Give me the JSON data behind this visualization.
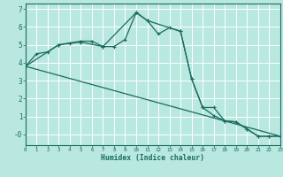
{
  "xlabel": "Humidex (Indice chaleur)",
  "bg_color": "#b8e8e0",
  "grid_color": "#ffffff",
  "line_color": "#1a6b60",
  "xlim": [
    0,
    23
  ],
  "ylim": [
    -0.6,
    7.3
  ],
  "x_ticks": [
    0,
    1,
    2,
    3,
    4,
    5,
    6,
    7,
    8,
    9,
    10,
    11,
    12,
    13,
    14,
    15,
    16,
    17,
    18,
    19,
    20,
    21,
    22,
    23
  ],
  "y_ticks": [
    0,
    1,
    2,
    3,
    4,
    5,
    6,
    7
  ],
  "y_tick_labels": [
    "-0",
    "1",
    "2",
    "3",
    "4",
    "5",
    "6",
    "7"
  ],
  "series1_x": [
    0,
    1,
    2,
    3,
    4,
    5,
    6,
    7,
    8,
    9,
    10,
    11,
    12,
    13,
    14,
    15,
    16,
    17,
    18,
    19,
    20,
    21,
    22,
    23
  ],
  "series1_y": [
    3.8,
    4.5,
    4.6,
    5.0,
    5.1,
    5.2,
    5.2,
    4.9,
    4.9,
    5.3,
    6.8,
    6.35,
    5.6,
    5.95,
    5.75,
    3.1,
    1.5,
    1.5,
    0.75,
    0.7,
    0.3,
    -0.1,
    -0.1,
    -0.1
  ],
  "series2_x": [
    0,
    3,
    5,
    7,
    10,
    11,
    14,
    15,
    16,
    17,
    18,
    19,
    20,
    21,
    22,
    23
  ],
  "series2_y": [
    3.8,
    5.0,
    5.15,
    4.9,
    6.8,
    6.35,
    5.75,
    3.1,
    1.5,
    1.05,
    0.75,
    0.7,
    0.3,
    -0.1,
    -0.1,
    -0.1
  ],
  "series3_x": [
    0,
    23
  ],
  "series3_y": [
    3.8,
    -0.1
  ]
}
